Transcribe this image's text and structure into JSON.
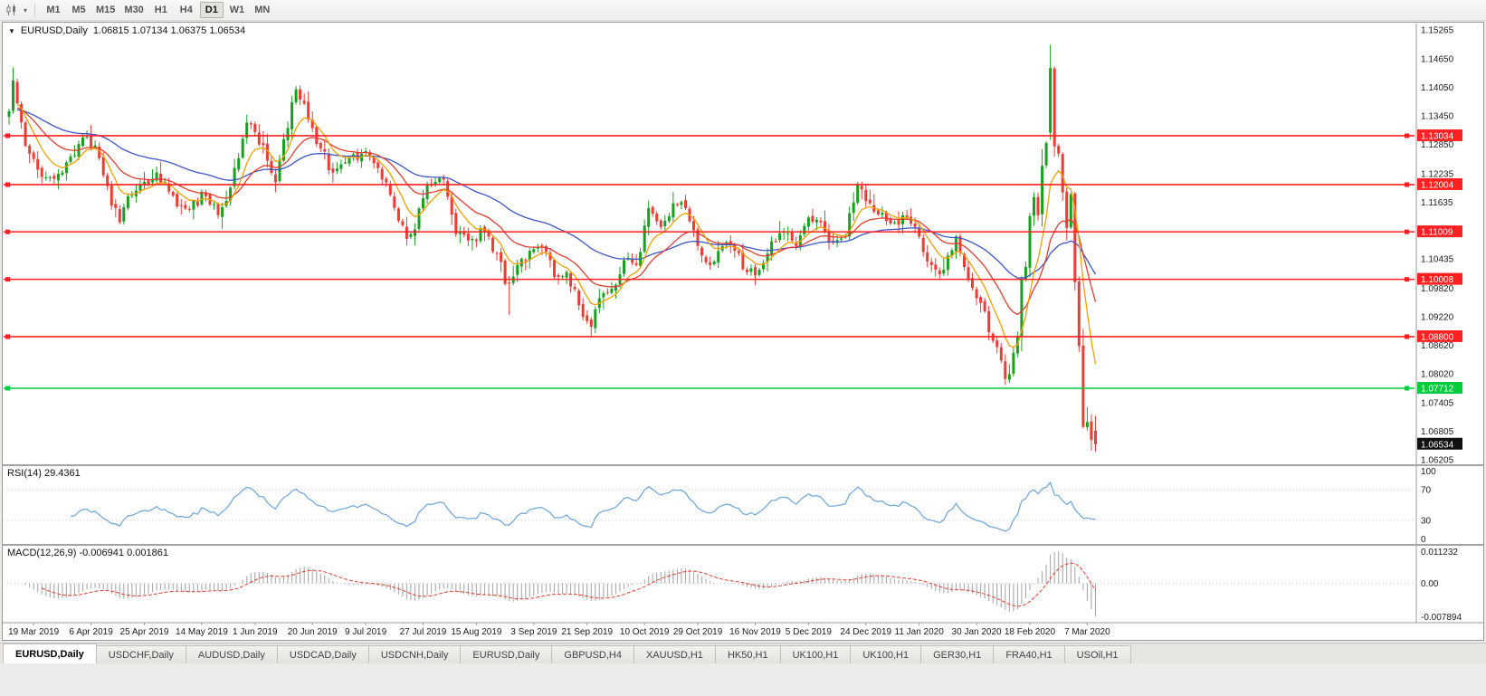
{
  "toolbar": {
    "timeframes": [
      {
        "label": "M1",
        "active": false
      },
      {
        "label": "M5",
        "active": false
      },
      {
        "label": "M15",
        "active": false
      },
      {
        "label": "M30",
        "active": false
      },
      {
        "label": "H1",
        "active": false
      },
      {
        "label": "H4",
        "active": false
      },
      {
        "label": "D1",
        "active": true
      },
      {
        "label": "W1",
        "active": false
      },
      {
        "label": "MN",
        "active": false
      }
    ]
  },
  "chart": {
    "title_symbol": "EURUSD,Daily",
    "ohlc_text": "1.06815 1.07134 1.06375 1.06534",
    "rsi_label": "RSI(14) 29.4361",
    "macd_label": "MACD(12,26,9) -0.006941 0.001861"
  },
  "axis": {
    "price_ticks": [
      "1.15265",
      "1.14650",
      "1.14050",
      "1.13450",
      "1.12850",
      "1.12235",
      "1.11635",
      "1.11035",
      "1.10435",
      "1.09820",
      "1.09220",
      "1.08620",
      "1.08020",
      "1.07405",
      "1.06805",
      "1.06205"
    ],
    "rsi_ticks": [
      {
        "value": 100,
        "label": "100"
      },
      {
        "value": 70,
        "label": "70"
      },
      {
        "value": 30,
        "label": "30"
      },
      {
        "value": 0,
        "label": "0"
      }
    ],
    "macd_ticks": {
      "top": "0.011232",
      "zero": "0.00",
      "bottom": "-0.007894"
    },
    "dates": [
      "19 Mar 2019",
      "6 Apr 2019",
      "25 Apr 2019",
      "14 May 2019",
      "1 Jun 2019",
      "20 Jun 2019",
      "9 Jul 2019",
      "27 Jul 2019",
      "15 Aug 2019",
      "3 Sep 2019",
      "21 Sep 2019",
      "10 Oct 2019",
      "29 Oct 2019",
      "16 Nov 2019",
      "5 Dec 2019",
      "24 Dec 2019",
      "11 Jan 2020",
      "30 Jan 2020",
      "18 Feb 2020",
      "7 Mar 2020"
    ]
  },
  "levels": [
    {
      "price": 1.13034,
      "label": "1.13034",
      "color": "#ff2121"
    },
    {
      "price": 1.12004,
      "label": "1.12004",
      "color": "#ff2121"
    },
    {
      "price": 1.11009,
      "label": "1.11009",
      "color": "#ff2121"
    },
    {
      "price": 1.10008,
      "label": "1.10008",
      "color": "#ff2121"
    },
    {
      "price": 1.088,
      "label": "1.08800",
      "color": "#ff2121"
    },
    {
      "price": 1.07712,
      "label": "1.07712",
      "color": "#00cc3c"
    }
  ],
  "current_price": {
    "value": 1.06534,
    "label": "1.06534",
    "bg": "#101010"
  },
  "colors": {
    "candle_up": "#17a11e",
    "candle_down": "#ef3b34",
    "ma_fast": "#f0a000",
    "ma_mid": "#e23d2e",
    "ma_slow": "#3c56c8",
    "rsi_line": "#6aa3dc",
    "rsi_levels": "#c8c8c8",
    "macd_hist": "#aaaaaa",
    "macd_signal": "#e23d2e",
    "axis_text": "#1a1a1a"
  },
  "chart_data": {
    "type": "candlestick",
    "symbol": "EURUSD",
    "timeframe": "Daily",
    "title": "EURUSD,Daily 1.06815 1.07134 1.06375 1.06534",
    "price_range": [
      1.06205,
      1.15265
    ],
    "last_ohlc": {
      "open": 1.06815,
      "high": 1.07134,
      "low": 1.06375,
      "close": 1.06534
    },
    "num_candles": 266,
    "close_anchors": [
      [
        0,
        1.1355
      ],
      [
        1,
        1.142
      ],
      [
        2,
        1.1372
      ],
      [
        4,
        1.1282
      ],
      [
        7,
        1.1232
      ],
      [
        10,
        1.1216
      ],
      [
        13,
        1.1226
      ],
      [
        16,
        1.1262
      ],
      [
        19,
        1.1301
      ],
      [
        22,
        1.1256
      ],
      [
        25,
        1.1156
      ],
      [
        27,
        1.1121
      ],
      [
        29,
        1.1176
      ],
      [
        33,
        1.1206
      ],
      [
        36,
        1.1226
      ],
      [
        39,
        1.1186
      ],
      [
        42,
        1.1156
      ],
      [
        45,
        1.1166
      ],
      [
        48,
        1.1176
      ],
      [
        51,
        1.1136
      ],
      [
        53,
        1.1166
      ],
      [
        56,
        1.1256
      ],
      [
        58,
        1.1331
      ],
      [
        60,
        1.1311
      ],
      [
        63,
        1.1251
      ],
      [
        65,
        1.1206
      ],
      [
        67,
        1.1296
      ],
      [
        70,
        1.1401
      ],
      [
        72,
        1.1371
      ],
      [
        75,
        1.1286
      ],
      [
        79,
        1.1226
      ],
      [
        83,
        1.1256
      ],
      [
        87,
        1.1271
      ],
      [
        91,
        1.1211
      ],
      [
        94,
        1.1151
      ],
      [
        97,
        1.1086
      ],
      [
        99,
        1.1106
      ],
      [
        102,
        1.1201
      ],
      [
        106,
        1.1211
      ],
      [
        109,
        1.1096
      ],
      [
        113,
        1.1086
      ],
      [
        116,
        1.1101
      ],
      [
        119,
        1.1056
      ],
      [
        121,
        1.0991
      ],
      [
        124,
        1.1031
      ],
      [
        127,
        1.1061
      ],
      [
        130,
        1.1071
      ],
      [
        133,
        1.1006
      ],
      [
        136,
        1.1016
      ],
      [
        139,
        1.0946
      ],
      [
        142,
        1.0901
      ],
      [
        144,
        1.0961
      ],
      [
        147,
        1.0981
      ],
      [
        150,
        1.1041
      ],
      [
        153,
        1.1031
      ],
      [
        156,
        1.1151
      ],
      [
        159,
        1.1111
      ],
      [
        162,
        1.1161
      ],
      [
        165,
        1.1151
      ],
      [
        168,
        1.1071
      ],
      [
        171,
        1.1031
      ],
      [
        174,
        1.1071
      ],
      [
        177,
        1.1061
      ],
      [
        180,
        1.1016
      ],
      [
        183,
        1.1021
      ],
      [
        186,
        1.1081
      ],
      [
        189,
        1.1101
      ],
      [
        192,
        1.1071
      ],
      [
        195,
        1.1131
      ],
      [
        198,
        1.1121
      ],
      [
        201,
        1.1081
      ],
      [
        204,
        1.1091
      ],
      [
        207,
        1.1201
      ],
      [
        210,
        1.1161
      ],
      [
        213,
        1.1141
      ],
      [
        216,
        1.1121
      ],
      [
        219,
        1.1131
      ],
      [
        222,
        1.1091
      ],
      [
        225,
        1.1031
      ],
      [
        228,
        1.1021
      ],
      [
        231,
        1.1091
      ],
      [
        234,
        1.1001
      ],
      [
        237,
        1.0951
      ],
      [
        240,
        1.0871
      ],
      [
        243,
        1.0791
      ],
      [
        244,
        1.0801
      ],
      [
        245,
        1.0846
      ],
      [
        246,
        1.0881
      ],
      [
        247,
        1.1001
      ],
      [
        248,
        1.1027
      ],
      [
        249,
        1.1134
      ],
      [
        250,
        1.1174
      ],
      [
        251,
        1.1136
      ],
      [
        252,
        1.124
      ],
      [
        253,
        1.1288
      ],
      [
        254,
        1.1446
      ],
      [
        255,
        1.1281
      ],
      [
        256,
        1.1266
      ],
      [
        257,
        1.1184
      ],
      [
        258,
        1.1109
      ],
      [
        259,
        1.118
      ],
      [
        260,
        1.0995
      ],
      [
        261,
        1.086
      ],
      [
        262,
        1.069
      ],
      [
        263,
        1.07
      ],
      [
        264,
        1.0662
      ],
      [
        265,
        1.06534
      ]
    ],
    "special_candles": {
      "1": {
        "high": 1.1448
      },
      "122": {
        "low": 1.0926
      },
      "142": {
        "low": 1.0879
      },
      "243": {
        "low": 1.0778
      },
      "254": {
        "open": 1.131,
        "high": 1.1495,
        "low": 1.1295,
        "close": 1.1446
      }
    },
    "indicators": {
      "rsi": {
        "period": 14,
        "last_value": 29.4361
      },
      "macd": {
        "fast": 12,
        "slow": 26,
        "signal_period": 9,
        "last_macd": -0.006941,
        "last_signal": 0.001861,
        "range": [
          -0.007894,
          0.011232
        ]
      },
      "moving_averages": [
        {
          "period": 8,
          "color_key": "ma_fast"
        },
        {
          "period": 20,
          "color_key": "ma_mid"
        },
        {
          "period": 50,
          "color_key": "ma_slow"
        }
      ]
    },
    "horizontal_levels": [
      1.13034,
      1.12004,
      1.11009,
      1.10008,
      1.088,
      1.07712
    ]
  },
  "tabs": [
    {
      "label": "EURUSD,Daily",
      "active": true
    },
    {
      "label": "USDCHF,Daily",
      "active": false
    },
    {
      "label": "AUDUSD,Daily",
      "active": false
    },
    {
      "label": "USDCAD,Daily",
      "active": false
    },
    {
      "label": "USDCNH,Daily",
      "active": false
    },
    {
      "label": "EURUSD,Daily",
      "active": false
    },
    {
      "label": "GBPUSD,H4",
      "active": false
    },
    {
      "label": "XAUUSD,H1",
      "active": false
    },
    {
      "label": "HK50,H1",
      "active": false
    },
    {
      "label": "UK100,H1",
      "active": false
    },
    {
      "label": "UK100,H1",
      "active": false
    },
    {
      "label": "GER30,H1",
      "active": false
    },
    {
      "label": "FRA40,H1",
      "active": false
    },
    {
      "label": "USOil,H1",
      "active": false
    }
  ]
}
